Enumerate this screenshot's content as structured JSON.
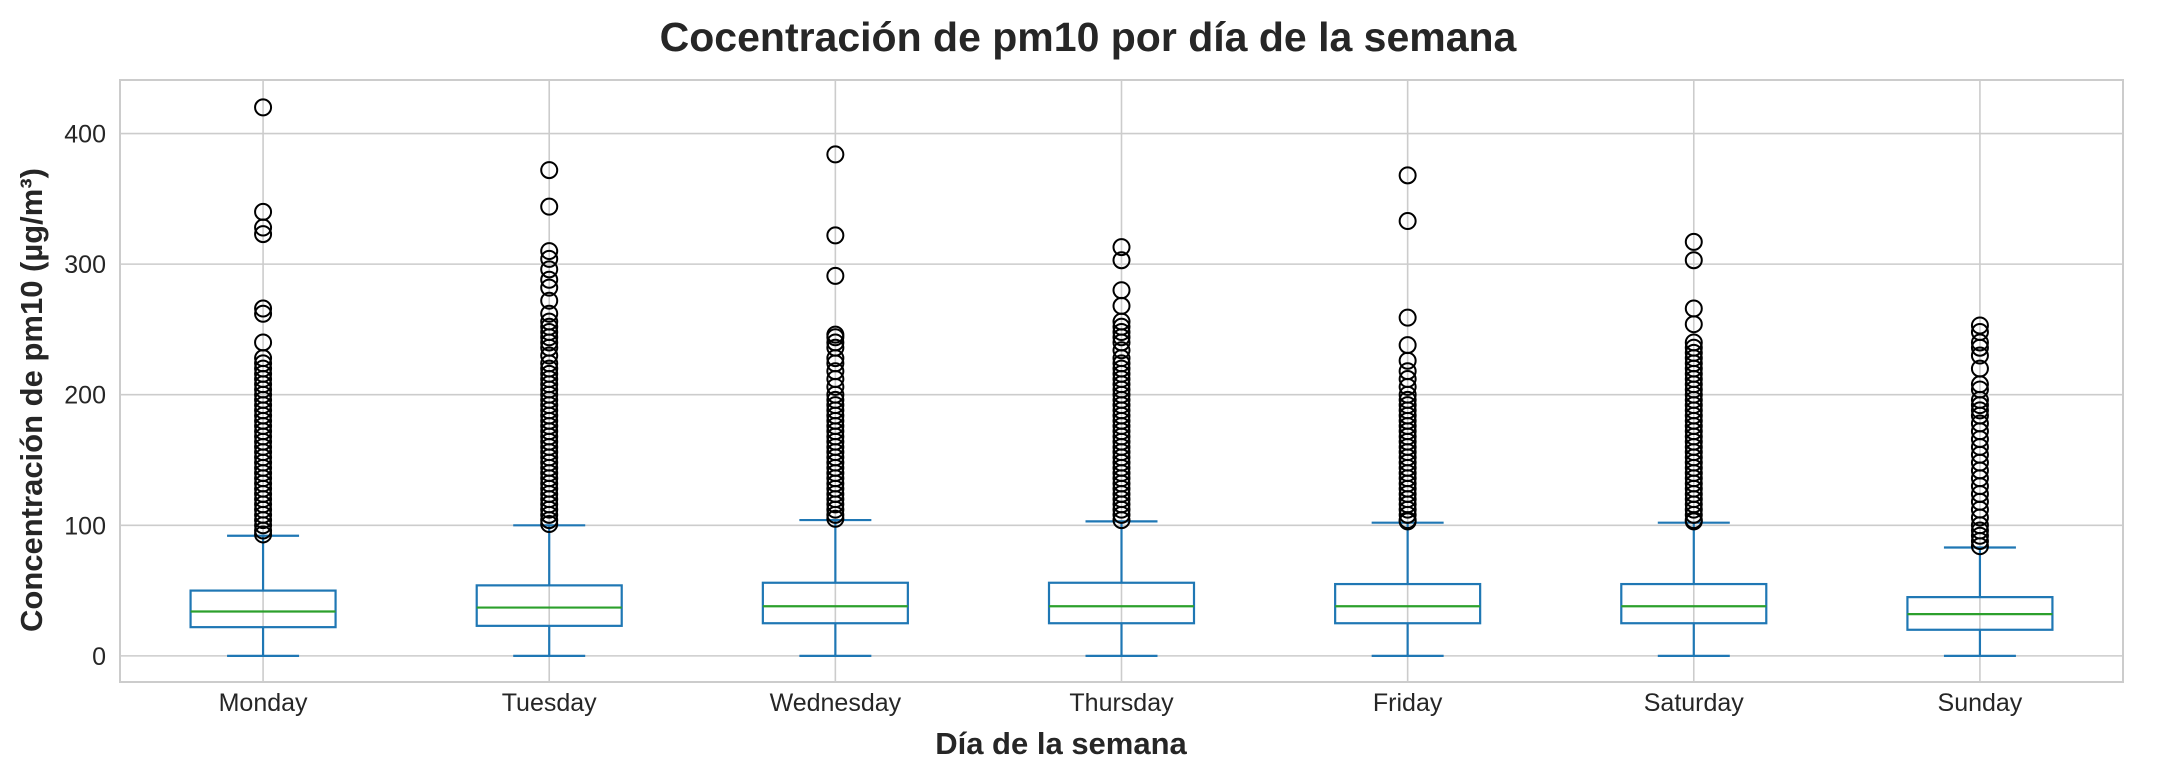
{
  "chart_data": {
    "type": "box",
    "title": "Cocentración de pm10 por día de la semana",
    "xlabel": "Día de la semana",
    "ylabel": "Concentración de pm10 (µg/m³)",
    "ylim": [
      -20,
      441
    ],
    "yticks": [
      0,
      100,
      200,
      300,
      400
    ],
    "grid": true,
    "categories": [
      "Monday",
      "Tuesday",
      "Wednesday",
      "Thursday",
      "Friday",
      "Saturday",
      "Sunday"
    ],
    "colors": {
      "box": "#1f77b4",
      "median": "#2ca02c",
      "outlier": "#000000",
      "grid": "#cccccc",
      "spine": "#cccccc"
    },
    "boxes": [
      {
        "category": "Monday",
        "whislo": 0,
        "q1": 22,
        "med": 34,
        "q3": 50,
        "whishi": 92,
        "outliers": [
          420,
          340,
          328,
          323,
          266,
          262,
          240,
          228,
          224,
          220,
          216,
          212,
          208,
          204,
          200,
          196,
          192,
          188,
          184,
          180,
          176,
          172,
          168,
          164,
          160,
          156,
          152,
          148,
          144,
          140,
          136,
          132,
          128,
          124,
          120,
          116,
          112,
          108,
          104,
          100,
          96,
          93
        ]
      },
      {
        "category": "Tuesday",
        "whislo": 0,
        "q1": 23,
        "med": 37,
        "q3": 54,
        "whishi": 100,
        "outliers": [
          372,
          344,
          310,
          304,
          296,
          288,
          282,
          272,
          262,
          256,
          252,
          248,
          244,
          240,
          236,
          230,
          224,
          220,
          216,
          212,
          208,
          204,
          200,
          196,
          192,
          188,
          184,
          180,
          176,
          172,
          168,
          164,
          160,
          156,
          152,
          148,
          144,
          140,
          136,
          132,
          128,
          124,
          120,
          116,
          112,
          108,
          104,
          101
        ]
      },
      {
        "category": "Wednesday",
        "whislo": 0,
        "q1": 25,
        "med": 38,
        "q3": 56,
        "whishi": 104,
        "outliers": [
          384,
          322,
          291,
          246,
          244,
          240,
          236,
          228,
          224,
          218,
          212,
          206,
          200,
          196,
          192,
          188,
          184,
          180,
          176,
          172,
          168,
          164,
          160,
          156,
          152,
          148,
          144,
          140,
          136,
          132,
          128,
          124,
          120,
          116,
          112,
          108,
          105
        ]
      },
      {
        "category": "Thursday",
        "whislo": 0,
        "q1": 25,
        "med": 38,
        "q3": 56,
        "whishi": 103,
        "outliers": [
          313,
          303,
          280,
          268,
          256,
          252,
          248,
          244,
          240,
          234,
          228,
          224,
          220,
          216,
          212,
          208,
          204,
          200,
          196,
          192,
          188,
          184,
          180,
          176,
          172,
          168,
          164,
          160,
          156,
          152,
          148,
          144,
          140,
          136,
          132,
          128,
          124,
          120,
          116,
          112,
          108,
          104
        ]
      },
      {
        "category": "Friday",
        "whislo": 0,
        "q1": 25,
        "med": 38,
        "q3": 55,
        "whishi": 102,
        "outliers": [
          368,
          333,
          259,
          238,
          226,
          218,
          212,
          206,
          200,
          196,
          192,
          188,
          184,
          180,
          176,
          172,
          168,
          164,
          160,
          156,
          152,
          148,
          144,
          140,
          136,
          132,
          128,
          124,
          120,
          116,
          112,
          108,
          104,
          103
        ]
      },
      {
        "category": "Saturday",
        "whislo": 0,
        "q1": 25,
        "med": 38,
        "q3": 55,
        "whishi": 102,
        "outliers": [
          317,
          303,
          266,
          254,
          240,
          236,
          232,
          228,
          224,
          220,
          216,
          212,
          208,
          204,
          200,
          196,
          192,
          188,
          184,
          180,
          176,
          172,
          168,
          164,
          160,
          156,
          152,
          148,
          144,
          140,
          136,
          132,
          128,
          124,
          120,
          116,
          112,
          108,
          104,
          103
        ]
      },
      {
        "category": "Sunday",
        "whislo": 0,
        "q1": 20,
        "med": 32,
        "q3": 45,
        "whishi": 83,
        "outliers": [
          253,
          248,
          240,
          236,
          230,
          220,
          208,
          204,
          196,
          192,
          188,
          184,
          178,
          172,
          166,
          160,
          154,
          148,
          142,
          136,
          130,
          124,
          118,
          112,
          106,
          100,
          96,
          92,
          88,
          84
        ]
      }
    ]
  }
}
